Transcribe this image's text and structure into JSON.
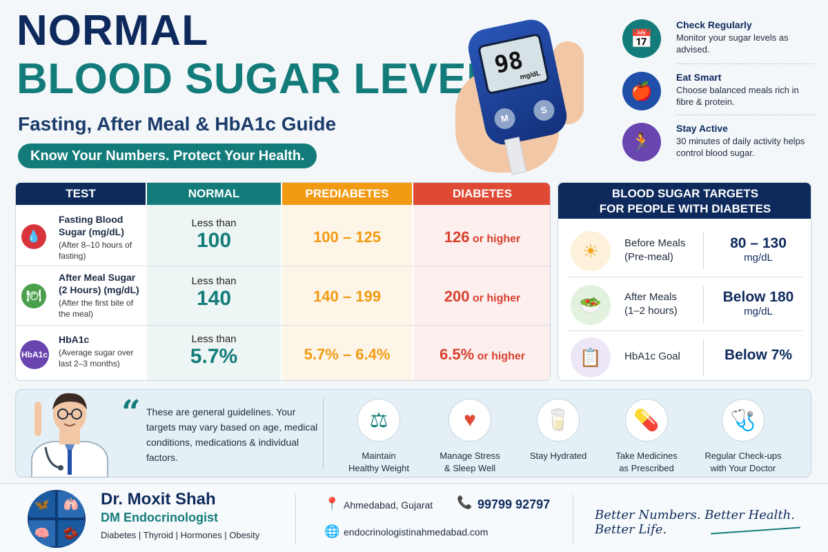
{
  "header": {
    "title_line1": "NORMAL",
    "title_line2": "BLOOD SUGAR LEVELS",
    "subtitle": "Fasting, After Meal & HbA1c Guide",
    "tagline": "Know Your Numbers. Protect Your Health."
  },
  "meter": {
    "reading": "98",
    "unit": "mg/dL",
    "btn_left": "M",
    "btn_right": "S"
  },
  "tips": [
    {
      "title": "Check Regularly",
      "text": "Monitor your sugar levels as advised.",
      "icon": "calendar-clock-icon",
      "color": "#137c7a"
    },
    {
      "title": "Eat Smart",
      "text": "Choose balanced meals rich in fibre & protein.",
      "icon": "apple-icon",
      "color": "#1f4fa8"
    },
    {
      "title": "Stay Active",
      "text": "30 minutes of daily activity helps control blood sugar.",
      "icon": "running-icon",
      "color": "#6a45b0"
    }
  ],
  "table": {
    "headers": {
      "test": "TEST",
      "normal": "NORMAL",
      "prediabetes": "PREDIABETES",
      "diabetes": "DIABETES"
    },
    "header_colors": {
      "test": "#0e2a5c",
      "normal": "#137c7a",
      "prediabetes": "#f29a11",
      "diabetes": "#e04a35"
    },
    "rows": [
      {
        "name": "Fasting Blood Sugar (mg/dL)",
        "note": "(After 8–10 hours of fasting)",
        "icon_text": "💧",
        "icon_color": "#d9343b",
        "normal_prefix": "Less than",
        "normal_value": "100",
        "prediabetes": "100 – 125",
        "diabetes_value": "126",
        "diabetes_suffix": "or higher"
      },
      {
        "name": "After Meal Sugar (2 Hours) (mg/dL)",
        "note": "(After the first bite of the meal)",
        "icon_text": "🍽",
        "icon_color": "#4aa04a",
        "normal_prefix": "Less than",
        "normal_value": "140",
        "prediabetes": "140 – 199",
        "diabetes_value": "200",
        "diabetes_suffix": "or higher"
      },
      {
        "name": "HbA1c",
        "note": "(Average sugar over last 2–3 months)",
        "icon_text": "HbA1c",
        "icon_color": "#6a45b0",
        "normal_prefix": "Less than",
        "normal_value": "5.7%",
        "prediabetes": "5.7% – 6.4%",
        "diabetes_value": "6.5%",
        "diabetes_suffix": "or higher"
      }
    ]
  },
  "targets": {
    "heading_line1": "BLOOD SUGAR TARGETS",
    "heading_line2": "FOR PEOPLE WITH DIABETES",
    "rows": [
      {
        "label_line1": "Before Meals",
        "label_line2": "(Pre-meal)",
        "value": "80 – 130",
        "unit": "mg/dL",
        "icon": "sun-icon"
      },
      {
        "label_line1": "After Meals",
        "label_line2": "(1–2 hours)",
        "value": "Below 180",
        "unit": "mg/dL",
        "icon": "salad-bowl-icon"
      },
      {
        "label_line1": "HbA1c Goal",
        "label_line2": "",
        "value": "Below 7%",
        "unit": "",
        "icon": "clipboard-icon"
      }
    ]
  },
  "note": {
    "quote": "These are general guidelines. Your targets may vary based on age, medical conditions, medications & individual factors."
  },
  "lifestyle": [
    {
      "line1": "Maintain",
      "line2": "Healthy Weight",
      "icon": "scale-icon"
    },
    {
      "line1": "Manage Stress",
      "line2": "& Sleep Well",
      "icon": "heart-pulse-icon"
    },
    {
      "line1": "Stay Hydrated",
      "line2": "",
      "icon": "water-glass-icon"
    },
    {
      "line1": "Take Medicines",
      "line2": "as Prescribed",
      "icon": "medicine-bottle-icon"
    },
    {
      "line1": "Regular Check-ups",
      "line2": "with Your Doctor",
      "icon": "doctor-icon"
    }
  ],
  "footer": {
    "doctor_name": "Dr. Moxit Shah",
    "doctor_role": "DM Endocrinologist",
    "specialties": "Diabetes | Thyroid | Hormones | Obesity",
    "location": "Ahmedabad, Gujarat",
    "phone": "99799 92797",
    "website": "endocrinologistinahmedabad.com",
    "slogan": "Better Numbers. Better Health. Better Life."
  }
}
